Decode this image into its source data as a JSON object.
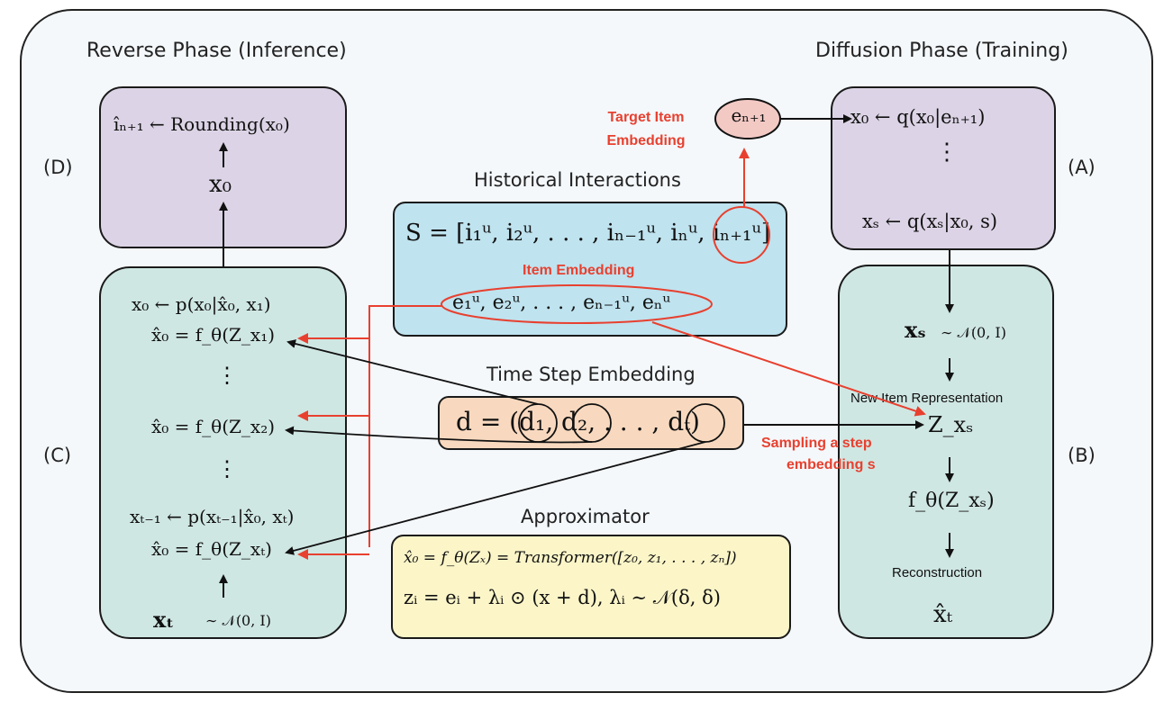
{
  "titles": {
    "reverse_phase": "Reverse Phase (Inference)",
    "diffusion_phase": "Diffusion Phase (Training)",
    "historical": "Historical Interactions",
    "time_step": "Time Step Embedding",
    "approximator": "Approximator"
  },
  "panel_labels": {
    "A": "(A)",
    "B": "(B)",
    "C": "(C)",
    "D": "(D)"
  },
  "annotations": {
    "target_item_1": "Target Item",
    "target_item_2": "Embedding",
    "item_embedding": "Item Embedding",
    "sampling_1": "Sampling a step",
    "sampling_2": "embedding s",
    "new_item_rep": "New Item Representation",
    "reconstruction": "Reconstruction"
  },
  "math": {
    "target_emb": "eₙ₊₁",
    "A_line1": "x₀ ← q(x₀|eₙ₊₁)",
    "A_dots": "⋮",
    "A_line2": "xₛ ← q(xₛ|x₀, s)",
    "D_line1": "îₙ₊₁ ← Rounding(x₀)",
    "D_line2": "x₀",
    "S_seq": "S = [i₁ᵘ, i₂ᵘ, . . . , iₙ₋₁ᵘ, iₙᵘ, iₙ₊₁ᵘ]",
    "E_seq": "e₁ᵘ, e₂ᵘ, . . . , eₙ₋₁ᵘ, eₙᵘ",
    "d_seq": "d = (d₁, d₂, . . . , dₜ)",
    "C_line1": "x₀ ← p(x₀|x̂₀, x₁)",
    "C_line2": "x̂₀ = f_θ(Z_x₁)",
    "C_dots1": "⋮",
    "C_line3": "x̂₀ = f_θ(Z_x₂)",
    "C_dots2": "⋮",
    "C_line4": "xₜ₋₁ ← p(xₜ₋₁|x̂₀, xₜ)",
    "C_line5": "x̂₀ = f_θ(Z_xₜ)",
    "C_line6": "xₜ",
    "C_noise": "∼ 𝒩(0, I)",
    "B_xs": "xₛ",
    "B_noise": "∼ 𝒩(0, I)",
    "B_z": "Z_xₛ",
    "B_f": "f_θ(Z_xₛ)",
    "B_xhat": "x̂ₜ",
    "approx_1": "x̂₀ = f_θ(Zₓ) = Transformer([z₀, z₁, . . . , zₙ])",
    "approx_2": "zᵢ = eᵢ + λᵢ ⊙ (x + d), λᵢ ∼ 𝒩(δ, δ)"
  },
  "colors": {
    "accent_red": "#e8402f",
    "purple_box": "#dcd4e6",
    "teal_box": "#cfe7e3",
    "blue_box": "#bfe3ef",
    "peach_box": "#f8d9bf",
    "yellow_box": "#fbf5c8",
    "target_node": "#f3c9c4"
  }
}
